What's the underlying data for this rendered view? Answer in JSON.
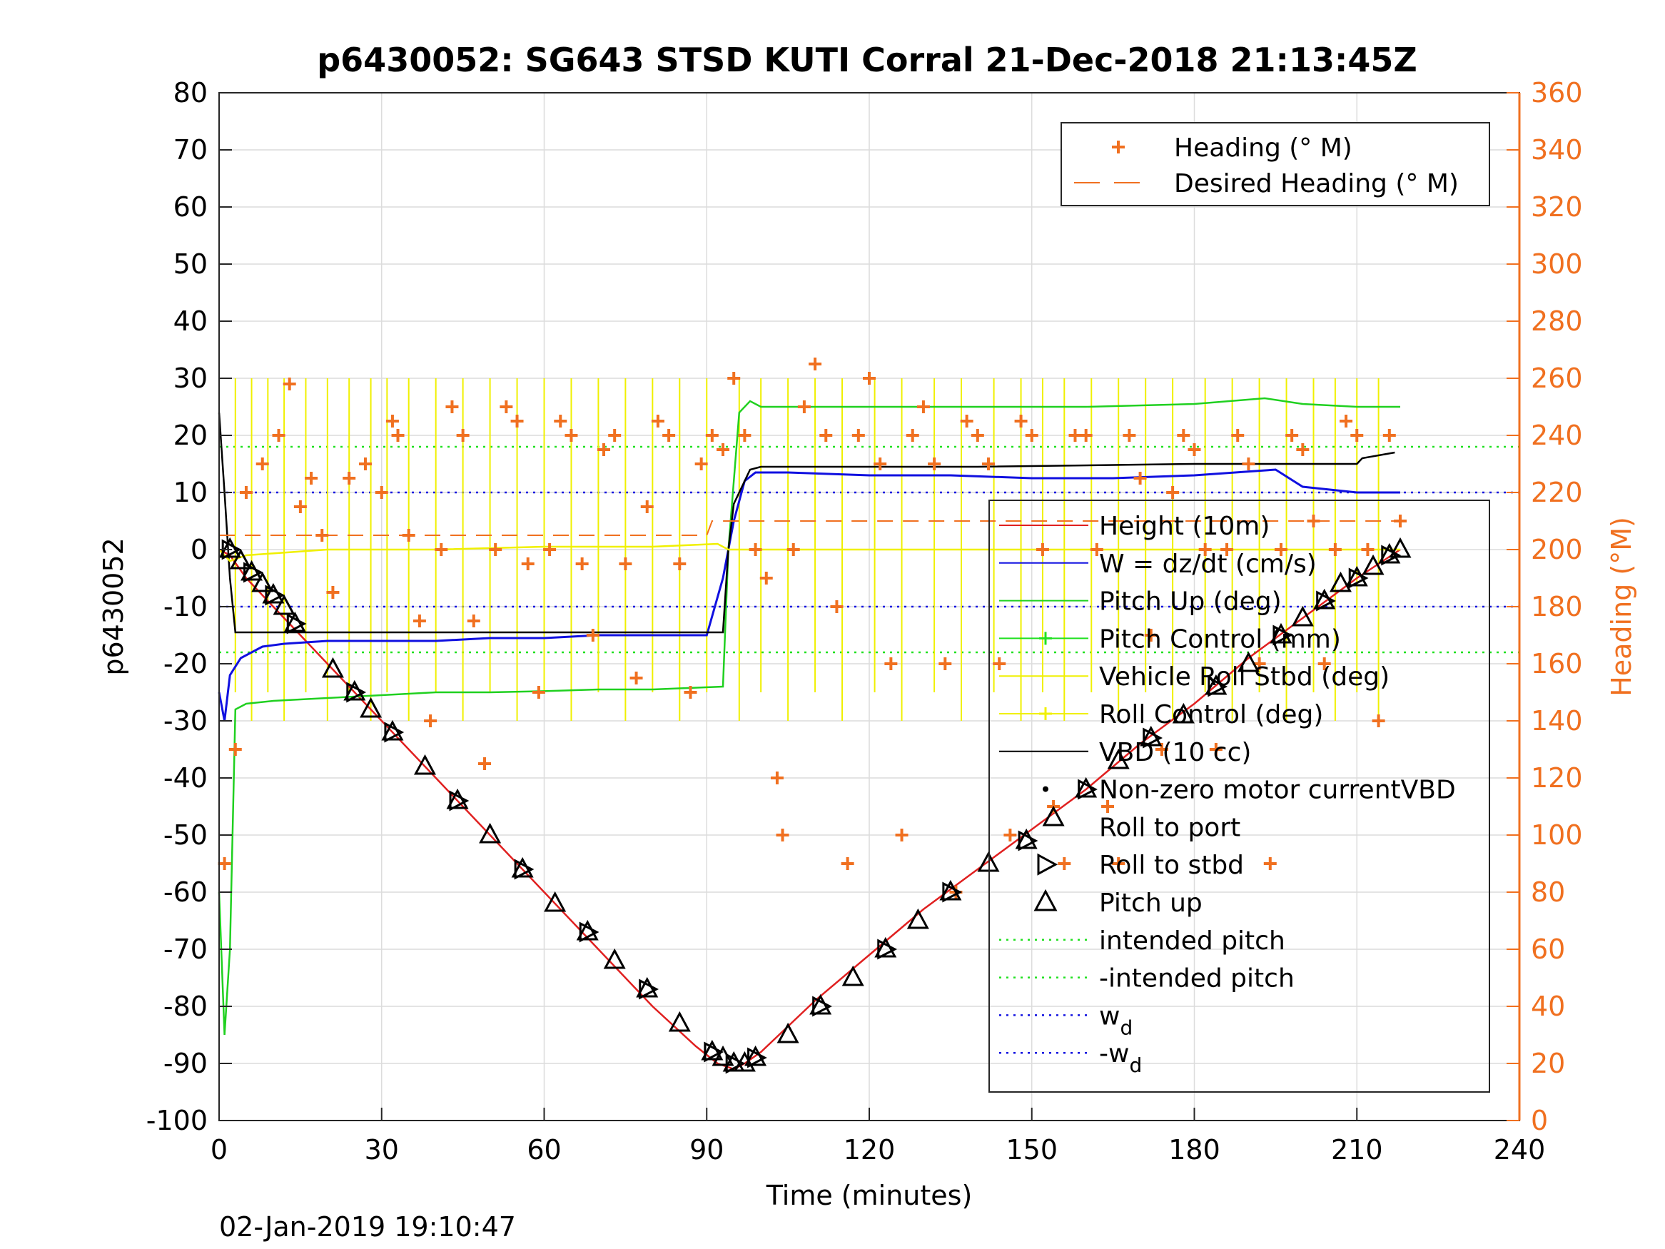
{
  "chart_data": {
    "type": "line",
    "title": "p6430052: SG643 STSD KUTI Corral 21-Dec-2018 21:13:45Z",
    "xlabel": "Time (minutes)",
    "ylabel": "p6430052",
    "y2label": "Heading (°M)",
    "xlim": [
      0,
      240
    ],
    "ylim": [
      -100,
      80
    ],
    "y2lim": [
      0,
      360
    ],
    "xticks": [
      "0",
      "30",
      "60",
      "90",
      "120",
      "150",
      "180",
      "210",
      "240"
    ],
    "yticks": [
      "80",
      "70",
      "60",
      "50",
      "40",
      "30",
      "20",
      "10",
      "0",
      "-10",
      "-20",
      "-30",
      "-40",
      "-50",
      "-60",
      "-70",
      "-80",
      "-90",
      "-100"
    ],
    "y2ticks": [
      "360",
      "340",
      "320",
      "300",
      "280",
      "260",
      "240",
      "220",
      "200",
      "180",
      "160",
      "140",
      "120",
      "100",
      "80",
      "60",
      "40",
      "20",
      "0"
    ],
    "grid": true,
    "timestamp": "02-Jan-2019 19:10:47",
    "legend_heading": [
      {
        "label": "Heading (° M)",
        "color": "#f07020",
        "style": "plus"
      },
      {
        "label": "Desired Heading (° M)",
        "color": "#f07020",
        "style": "dash"
      }
    ],
    "legend_main": [
      {
        "label": "Height (10m)",
        "color": "#e02020",
        "style": "line"
      },
      {
        "label": "W = dz/dt (cm/s)",
        "color": "#1010e0",
        "style": "line"
      },
      {
        "label": "Pitch Up (deg)",
        "color": "#20d020",
        "style": "line"
      },
      {
        "label": "Pitch Control (mm)",
        "color": "#20e020",
        "style": "plusline"
      },
      {
        "label": "Vehicle Roll Stbd (deg)",
        "color": "#f0f000",
        "style": "line"
      },
      {
        "label": "Roll Control (deg)",
        "color": "#f0f000",
        "style": "plusline"
      },
      {
        "label": "VBD (10 cc)",
        "color": "#000000",
        "style": "line"
      },
      {
        "label": "Non-zero motor currentVBD",
        "color": "#000000",
        "style": "dot"
      },
      {
        "label": "Roll to port",
        "color": "#000000",
        "style": "none"
      },
      {
        "label": "Roll to stbd",
        "color": "#000000",
        "style": "tri-right"
      },
      {
        "label": "Pitch up",
        "color": "#000000",
        "style": "tri-up"
      },
      {
        "label": "intended pitch",
        "color": "#20e020",
        "style": "dot-line"
      },
      {
        "label": "-intended pitch",
        "color": "#20e020",
        "style": "dot-line"
      },
      {
        "label": "w",
        "sub": "d",
        "color": "#1010e0",
        "style": "dot-line"
      },
      {
        "label": "-w",
        "sub": "d",
        "color": "#1010e0",
        "style": "dot-line"
      }
    ],
    "series": [
      {
        "name": "Height (10m)",
        "color": "#e02020",
        "x": [
          0,
          2,
          5,
          10,
          15,
          20,
          30,
          40,
          50,
          60,
          70,
          80,
          88,
          92,
          95,
          97,
          100,
          110,
          120,
          130,
          140,
          150,
          160,
          170,
          180,
          190,
          200,
          210,
          218
        ],
        "y": [
          0,
          -1,
          -5,
          -10,
          -15,
          -20,
          -30,
          -40,
          -50,
          -60,
          -70,
          -80,
          -87,
          -90,
          -91,
          -90,
          -88,
          -79,
          -71,
          -63,
          -56,
          -49,
          -42,
          -34,
          -27,
          -19,
          -12,
          -5,
          0
        ]
      },
      {
        "name": "W = dz/dt (cm/s)",
        "color": "#1010e0",
        "x": [
          0,
          1,
          2,
          4,
          8,
          12,
          20,
          30,
          40,
          50,
          60,
          70,
          80,
          90,
          93,
          95,
          97,
          99,
          105,
          120,
          135,
          150,
          165,
          180,
          195,
          200,
          210,
          218
        ],
        "y": [
          -25,
          -30,
          -22,
          -19,
          -17,
          -16.5,
          -16,
          -16,
          -16,
          -15.5,
          -15.5,
          -15,
          -15,
          -15,
          -5,
          5,
          12,
          13.5,
          13.5,
          13,
          13,
          12.5,
          12.5,
          13,
          14,
          11,
          10,
          10
        ]
      },
      {
        "name": "Pitch Up (deg)",
        "color": "#20d020",
        "x": [
          0,
          1,
          2,
          3,
          5,
          10,
          20,
          30,
          40,
          50,
          60,
          70,
          80,
          93,
          94,
          96,
          98,
          100,
          120,
          140,
          160,
          180,
          193,
          200,
          210,
          218
        ],
        "y": [
          -60,
          -85,
          -70,
          -28,
          -27,
          -26.5,
          -26,
          -25.5,
          -25,
          -25,
          -24.8,
          -24.5,
          -24.5,
          -24,
          0,
          24,
          26,
          25,
          25,
          25,
          25,
          25.5,
          26.5,
          25.5,
          25,
          25
        ]
      },
      {
        "name": "VBD (10 cc)",
        "color": "#000000",
        "x": [
          0,
          1,
          2,
          3,
          20,
          40,
          60,
          80,
          93,
          94,
          95,
          98,
          100,
          140,
          180,
          210,
          211,
          217
        ],
        "y": [
          24,
          10,
          -5,
          -14.5,
          -14.5,
          -14.5,
          -14.5,
          -14.5,
          -14.5,
          0,
          8,
          14,
          14.5,
          14.5,
          15,
          15,
          16,
          17
        ]
      },
      {
        "name": "Vehicle Roll Stbd (deg)",
        "color": "#f0f000",
        "x": [
          0,
          2,
          5,
          20,
          40,
          60,
          80,
          92,
          94,
          100,
          120,
          140,
          160,
          180,
          200,
          218
        ],
        "y": [
          0,
          -2,
          -1,
          0,
          0,
          0.5,
          0.5,
          1,
          0,
          0,
          0,
          0,
          0,
          0,
          0,
          0
        ]
      },
      {
        "name": "Heading (° M)",
        "color": "#f07020",
        "x": [
          1,
          3,
          5,
          8,
          11,
          13,
          15,
          17,
          19,
          21,
          24,
          27,
          30,
          32,
          33,
          35,
          37,
          39,
          41,
          43,
          45,
          47,
          49,
          51,
          53,
          55,
          57,
          59,
          61,
          63,
          65,
          67,
          69,
          71,
          73,
          75,
          77,
          79,
          81,
          83,
          85,
          87,
          89,
          91,
          93,
          95,
          97,
          99,
          101,
          103,
          104,
          106,
          108,
          110,
          112,
          114,
          116,
          118,
          120,
          122,
          124,
          126,
          128,
          130,
          132,
          134,
          136,
          138,
          140,
          142,
          144,
          146,
          148,
          150,
          152,
          154,
          156,
          158,
          160,
          162,
          164,
          166,
          168,
          170,
          172,
          174,
          176,
          178,
          180,
          182,
          184,
          186,
          188,
          190,
          192,
          194,
          196,
          198,
          200,
          202,
          204,
          206,
          208,
          210,
          212,
          214,
          216,
          218
        ],
        "y": [
          90,
          130,
          220,
          230,
          240,
          258,
          215,
          225,
          205,
          185,
          225,
          230,
          220,
          245,
          240,
          205,
          175,
          140,
          200,
          250,
          240,
          175,
          125,
          200,
          250,
          245,
          195,
          150,
          200,
          245,
          240,
          195,
          170,
          235,
          240,
          195,
          155,
          215,
          245,
          240,
          195,
          150,
          230,
          240,
          235,
          260,
          240,
          200,
          190,
          120,
          100,
          200,
          250,
          265,
          240,
          180,
          90,
          240,
          260,
          230,
          160,
          100,
          240,
          250,
          230,
          160,
          80,
          245,
          240,
          230,
          160,
          100,
          245,
          240,
          200,
          110,
          90,
          240,
          240,
          200,
          110,
          90,
          240,
          225,
          170,
          130,
          220,
          240,
          235,
          200,
          130,
          200,
          240,
          230,
          160,
          90,
          200,
          240,
          235,
          210,
          160,
          200,
          245,
          240,
          200,
          140,
          240,
          210
        ]
      },
      {
        "name": "Desired Heading (° M)",
        "color": "#f07020",
        "x": [
          0,
          90,
          91,
          218
        ],
        "y": [
          205,
          205,
          210,
          210
        ]
      }
    ],
    "hlines": [
      {
        "name": "intended pitch",
        "y": 18,
        "color": "#20e020"
      },
      {
        "name": "-intended pitch",
        "y": -18,
        "color": "#20e020"
      },
      {
        "name": "wd",
        "y": 10,
        "color": "#1010e0"
      },
      {
        "name": "-wd",
        "y": -10,
        "color": "#1010e0"
      }
    ],
    "markers_pitch_up": {
      "x": [
        2,
        4,
        6,
        8,
        10,
        12,
        14,
        21,
        25,
        28,
        32,
        38,
        44,
        50,
        56,
        62,
        68,
        73,
        79,
        85,
        91,
        93,
        95,
        97,
        99,
        105,
        111,
        117,
        123,
        129,
        135,
        142,
        149,
        154,
        160,
        166,
        172,
        178,
        184,
        190,
        196,
        200,
        204,
        207,
        210,
        213,
        216,
        218
      ],
      "y": [
        0,
        -2,
        -4,
        -6,
        -8,
        -10,
        -13,
        -21,
        -25,
        -28,
        -32,
        -38,
        -44,
        -50,
        -56,
        -62,
        -67,
        -72,
        -77,
        -83,
        -88,
        -89,
        -90,
        -90,
        -89,
        -85,
        -80,
        -75,
        -70,
        -65,
        -60,
        -55,
        -51,
        -47,
        -42,
        -37,
        -33,
        -29,
        -24,
        -20,
        -15,
        -12,
        -9,
        -6,
        -5,
        -3,
        -1,
        0
      ]
    },
    "roll_control_spikes": [
      3,
      6,
      9,
      12,
      16,
      20,
      24,
      28,
      31,
      35,
      40,
      45,
      50,
      55,
      60,
      65,
      70,
      75,
      80,
      85,
      90,
      96,
      100,
      105,
      110,
      115,
      121,
      126,
      132,
      137,
      143,
      148,
      152,
      156,
      161,
      166,
      171,
      176,
      182,
      187,
      192,
      197,
      202,
      206,
      210,
      214
    ]
  }
}
